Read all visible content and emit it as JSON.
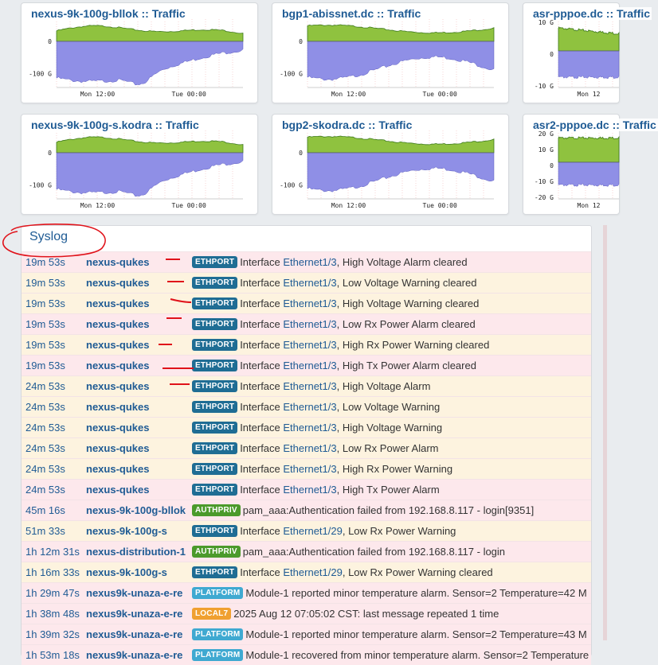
{
  "graphs": [
    {
      "title": "nexus-9k-100g-bllok :: Traffic",
      "yticks": [
        "0",
        "-100 G"
      ],
      "xticks": [
        "Mon 12:00",
        "Tue 00:00"
      ]
    },
    {
      "title": "bgp1-abissnet.dc :: Traffic",
      "yticks": [
        "0",
        "-100 G"
      ],
      "xticks": [
        "Mon 12:00",
        "Tue 00:00"
      ]
    },
    {
      "title": "asr-pppoe.dc :: Traffic",
      "yticks": [
        "10 G",
        "0",
        "-10 G"
      ],
      "xticks": [
        "Mon 12"
      ]
    },
    {
      "title": "nexus-9k-100g-s.kodra :: Traffic",
      "yticks": [
        "0",
        "-100 G"
      ],
      "xticks": [
        "Mon 12:00",
        "Tue 00:00"
      ]
    },
    {
      "title": "bgp2-skodra.dc :: Traffic",
      "yticks": [
        "0",
        "-100 G"
      ],
      "xticks": [
        "Mon 12:00",
        "Tue 00:00"
      ]
    },
    {
      "title": "asr2-pppoe.dc :: Traffic",
      "yticks": [
        "20 G",
        "10 G",
        "0",
        "-10 G",
        "-20 G"
      ],
      "xticks": [
        "Mon 12"
      ]
    }
  ],
  "syslog": {
    "title": "Syslog",
    "rows": [
      {
        "age": "19m 53s",
        "host": "nexus-qukes",
        "tag": "ETHPORT",
        "pre": "Interface ",
        "link": "Ethernet1/3",
        "post": ", High Voltage Alarm cleared"
      },
      {
        "age": "19m 53s",
        "host": "nexus-qukes",
        "tag": "ETHPORT",
        "pre": "Interface ",
        "link": "Ethernet1/3",
        "post": ", Low Voltage Warning cleared"
      },
      {
        "age": "19m 53s",
        "host": "nexus-qukes",
        "tag": "ETHPORT",
        "pre": "Interface ",
        "link": "Ethernet1/3",
        "post": ", High Voltage Warning cleared"
      },
      {
        "age": "19m 53s",
        "host": "nexus-qukes",
        "tag": "ETHPORT",
        "pre": "Interface ",
        "link": "Ethernet1/3",
        "post": ", Low Rx Power Alarm cleared"
      },
      {
        "age": "19m 53s",
        "host": "nexus-qukes",
        "tag": "ETHPORT",
        "pre": "Interface ",
        "link": "Ethernet1/3",
        "post": ", High Rx Power Warning cleared"
      },
      {
        "age": "19m 53s",
        "host": "nexus-qukes",
        "tag": "ETHPORT",
        "pre": "Interface ",
        "link": "Ethernet1/3",
        "post": ", High Tx Power Alarm cleared"
      },
      {
        "age": "24m 53s",
        "host": "nexus-qukes",
        "tag": "ETHPORT",
        "pre": "Interface ",
        "link": "Ethernet1/3",
        "post": ", High Voltage Alarm"
      },
      {
        "age": "24m 53s",
        "host": "nexus-qukes",
        "tag": "ETHPORT",
        "pre": "Interface ",
        "link": "Ethernet1/3",
        "post": ", Low Voltage Warning"
      },
      {
        "age": "24m 53s",
        "host": "nexus-qukes",
        "tag": "ETHPORT",
        "pre": "Interface ",
        "link": "Ethernet1/3",
        "post": ", High Voltage Warning"
      },
      {
        "age": "24m 53s",
        "host": "nexus-qukes",
        "tag": "ETHPORT",
        "pre": "Interface ",
        "link": "Ethernet1/3",
        "post": ", Low Rx Power Alarm"
      },
      {
        "age": "24m 53s",
        "host": "nexus-qukes",
        "tag": "ETHPORT",
        "pre": "Interface ",
        "link": "Ethernet1/3",
        "post": ", High Rx Power Warning"
      },
      {
        "age": "24m 53s",
        "host": "nexus-qukes",
        "tag": "ETHPORT",
        "pre": "Interface ",
        "link": "Ethernet1/3",
        "post": ", High Tx Power Alarm"
      },
      {
        "age": "45m 16s",
        "host": "nexus-9k-100g-bllok",
        "tag": "AUTHPRIV",
        "pre": "pam_aaa:Authentication failed from 192.168.8.117 - login[9351]",
        "link": "",
        "post": ""
      },
      {
        "age": "51m 33s",
        "host": "nexus-9k-100g-s",
        "tag": "ETHPORT",
        "pre": "Interface ",
        "link": "Ethernet1/29",
        "post": ", Low Rx Power Warning"
      },
      {
        "age": "1h 12m 31s",
        "host": "nexus-distribution-1",
        "tag": "AUTHPRIV",
        "pre": "pam_aaa:Authentication failed from 192.168.8.117 - login",
        "link": "",
        "post": ""
      },
      {
        "age": "1h 16m 33s",
        "host": "nexus-9k-100g-s",
        "tag": "ETHPORT",
        "pre": "Interface ",
        "link": "Ethernet1/29",
        "post": ", Low Rx Power Warning cleared"
      },
      {
        "age": "1h 29m 47s",
        "host": "nexus9k-unaza-e-re",
        "tag": "PLATFORM",
        "pre": "Module-1 reported minor temperature alarm. Sensor=2 Temperature=42 M",
        "link": "",
        "post": ""
      },
      {
        "age": "1h 38m 48s",
        "host": "nexus9k-unaza-e-re",
        "tag": "LOCAL7",
        "pre": "2025 Aug 12 07:05:02 CST: last message repeated 1 time",
        "link": "",
        "post": ""
      },
      {
        "age": "1h 39m 32s",
        "host": "nexus9k-unaza-e-re",
        "tag": "PLATFORM",
        "pre": "Module-1 reported minor temperature alarm. Sensor=2 Temperature=43 M",
        "link": "",
        "post": ""
      },
      {
        "age": "1h 53m 18s",
        "host": "nexus9k-unaza-e-re",
        "tag": "PLATFORM",
        "pre": "Module-1 recovered from minor temperature alarm. Sensor=2 Temperature",
        "link": "",
        "post": ""
      }
    ]
  },
  "colors": {
    "inbound": "#8fc23f",
    "outbound": "#8f8fe6",
    "accent": "#1f5b94",
    "ethport": "#1f6d94",
    "authpriv": "#4b9a2b",
    "platform": "#3fa9d1",
    "local7": "#f0a030"
  }
}
